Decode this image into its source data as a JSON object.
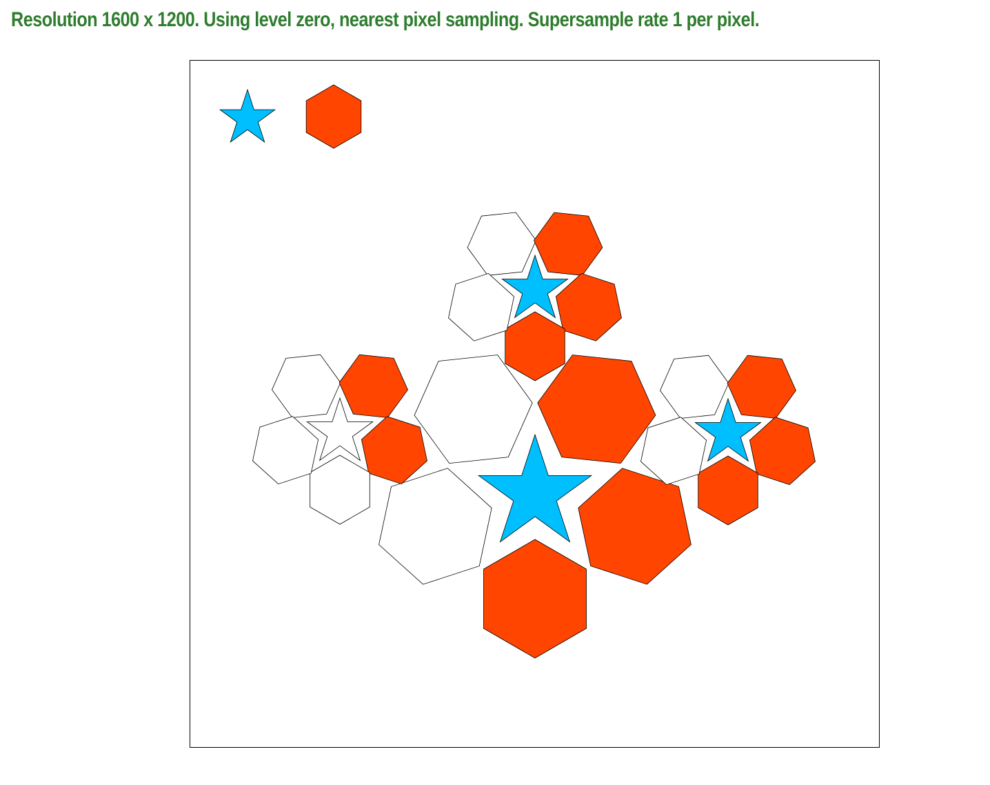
{
  "header": {
    "title": "Resolution 1600 x 1200. Using level zero, nearest pixel sampling. Supersample rate 1 per pixel."
  },
  "colors": {
    "star_fill": "#00bfff",
    "hex_fill": "#ff4500",
    "outline": "#000000",
    "title_color": "#2e7d2e"
  },
  "legend": [
    {
      "shape": "star",
      "color": "#00bfff"
    },
    {
      "shape": "hexagon",
      "color": "#ff4500"
    }
  ],
  "clusters": [
    {
      "name": "top",
      "star_filled": true,
      "hexagons_filled": [
        false,
        true,
        true,
        true,
        false
      ]
    },
    {
      "name": "center",
      "star_filled": true,
      "hexagons_filled": [
        false,
        true,
        true,
        true,
        false
      ]
    },
    {
      "name": "left",
      "star_filled": false,
      "hexagons_filled": [
        false,
        true,
        true,
        false,
        false
      ]
    },
    {
      "name": "right",
      "star_filled": true,
      "hexagons_filled": [
        false,
        true,
        true,
        true,
        false
      ]
    }
  ]
}
